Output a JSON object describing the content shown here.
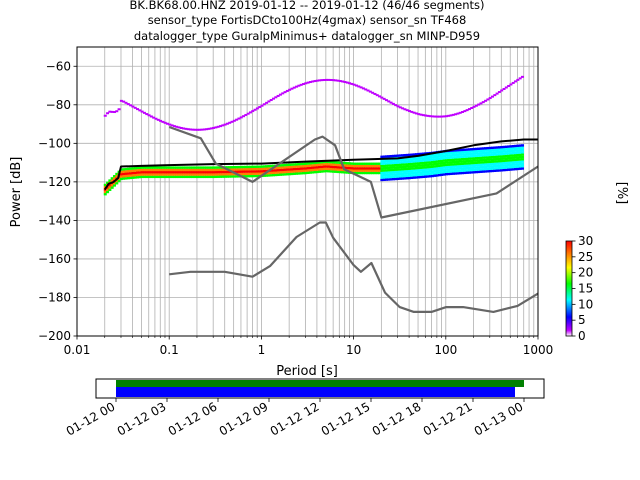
{
  "chart_data": [
    {
      "type": "heatmap",
      "subtype": "probabilistic power spectral density",
      "title_lines": [
        "BK.BK68.00.HNZ   2019-01-12 -- 2019-01-12  (46/46 segments)",
        "sensor_type FortisDCto100Hz(4gmax) sensor_sn TF468",
        "datalogger_type GuralpMinimus+ datalogger_sn MINP-D959"
      ],
      "xlabel": "Period [s]",
      "ylabel": "Power [dB]",
      "xscale": "log",
      "xlim": [
        0.01,
        1000
      ],
      "ylim": [
        -200,
        -50
      ],
      "x_ticks": [
        0.01,
        0.1,
        1,
        10,
        100,
        1000
      ],
      "x_tick_labels": [
        "0.01",
        "0.1",
        "1",
        "10",
        "100",
        "1000"
      ],
      "y_ticks": [
        -200,
        -180,
        -160,
        -140,
        -120,
        -100,
        -80,
        -60
      ],
      "y_tick_labels": [
        "−200",
        "−180",
        "−160",
        "−140",
        "−120",
        "−100",
        "−80",
        "−60"
      ],
      "grid": true,
      "colorbar": {
        "label": "[%]",
        "range": [
          0,
          30
        ],
        "ticks": [
          0,
          5,
          10,
          15,
          20,
          25,
          30
        ],
        "tick_labels": [
          "0",
          "5",
          "10",
          "15",
          "20",
          "25",
          "30"
        ],
        "colormap": [
          "#ffffff",
          "#bf00ff",
          "#0000ff",
          "#00ffff",
          "#00ff00",
          "#ffff00",
          "#ff7f00",
          "#ff0000"
        ]
      },
      "series": [
        {
          "role": "mean",
          "color": "#000000",
          "x": [
            0.02,
            0.022,
            0.025,
            0.028,
            0.03,
            0.05,
            0.1,
            0.3,
            1,
            3,
            10,
            30,
            50,
            100,
            200,
            400,
            700,
            1000
          ],
          "y": [
            -124,
            -121,
            -120,
            -118,
            -112,
            -111.7,
            -111.3,
            -110.8,
            -110.5,
            -109.5,
            -108.5,
            -107.8,
            -106.5,
            -104,
            -101,
            -99,
            -98,
            -98
          ]
        },
        {
          "role": "noise model high",
          "color": "#666666",
          "x": [
            0.1,
            0.22,
            0.32,
            0.8,
            3.8,
            4.6,
            6.3,
            7.9,
            15.4,
            20,
            354.8,
            1000
          ],
          "y": [
            -91.5,
            -97.4,
            -110.5,
            -120,
            -98,
            -96.5,
            -101,
            -113.5,
            -120,
            -138.5,
            -126,
            -112
          ]
        },
        {
          "role": "noise model low",
          "color": "#666666",
          "x": [
            0.1,
            0.17,
            0.4,
            0.8,
            1.24,
            2.4,
            4.3,
            5.0,
            6.0,
            10,
            12,
            15.6,
            21.9,
            31.6,
            45,
            70,
            101,
            154,
            328,
            600,
            1000
          ],
          "y": [
            -168,
            -166.7,
            -166.7,
            -169.2,
            -163.7,
            -148.6,
            -141.1,
            -141.1,
            -149,
            -163.2,
            -166.7,
            -162.1,
            -177.5,
            -185,
            -187.5,
            -187.5,
            -185,
            -185,
            -187.5,
            -184.4,
            -178
          ]
        },
        {
          "role": "psd density",
          "color": "#ff0000",
          "x": [
            0.02,
            0.03,
            0.05,
            0.1,
            0.3,
            1,
            3,
            5,
            10,
            20,
            40,
            70,
            100,
            200,
            400,
            700
          ],
          "y": [
            -124,
            -116,
            -115,
            -115,
            -115,
            -114.5,
            -113,
            -112,
            -113,
            -113,
            -112,
            -111,
            -110,
            -109,
            -108,
            -107
          ]
        }
      ]
    },
    {
      "type": "bar",
      "subtype": "data coverage timeline",
      "x_tick_labels": [
        "01-12 00",
        "01-12 03",
        "01-12 06",
        "01-12 09",
        "01-12 12",
        "01-12 15",
        "01-12 18",
        "01-12 21",
        "01-13 00"
      ],
      "series": [
        {
          "role": "available data",
          "color": "#008000",
          "start": "01-12 00:00",
          "end": "01-13 00:30"
        },
        {
          "role": "processed segments",
          "color": "#0000ff",
          "start": "01-12 00:00",
          "end": "01-12 23:30"
        }
      ]
    }
  ]
}
